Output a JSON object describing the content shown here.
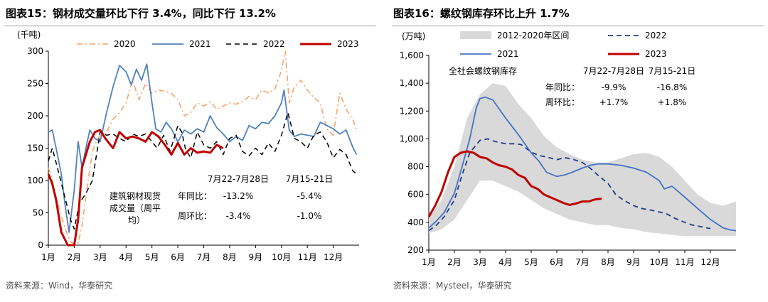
{
  "left": {
    "title": "图表15：钢材成交量环比下行 3.4%，同比下行 13.2%",
    "source": "资料来源：Wind，华泰研究",
    "chart_data": {
      "type": "line",
      "title": "钢材成交量环比下行 3.4%，同比下行 13.2%",
      "ylabel": "(千吨)",
      "ylim": [
        0,
        300
      ],
      "yticks": [
        "0",
        "50",
        "100",
        "150",
        "200",
        "250",
        "300"
      ],
      "xlim": [
        1,
        13
      ],
      "xticks": [
        "1月",
        "2月",
        "3月",
        "4月",
        "5月",
        "6月",
        "7月",
        "8月",
        "9月",
        "10月",
        "11月",
        "12月"
      ],
      "series": [
        {
          "name": "2020",
          "color": "#f4a46a",
          "dash": "dashdot",
          "width": 1.6,
          "x": [
            1.0,
            1.15,
            1.3,
            1.5,
            1.7,
            1.85,
            2.0,
            2.15,
            2.3,
            2.5,
            2.7,
            2.85,
            3.0,
            3.25,
            3.5,
            3.75,
            4.0,
            4.25,
            4.5,
            4.75,
            5.0,
            5.25,
            5.5,
            5.75,
            6.0,
            6.25,
            6.5,
            6.75,
            7.0,
            7.25,
            7.5,
            7.75,
            8.0,
            8.25,
            8.5,
            8.75,
            9.0,
            9.25,
            9.5,
            9.75,
            10.0,
            10.15,
            10.3,
            10.5,
            10.75,
            11.0,
            11.25,
            11.5,
            11.75,
            12.0,
            12.25,
            12.5,
            12.75,
            12.9
          ],
          "y": [
            120,
            100,
            75,
            45,
            20,
            5,
            2,
            3,
            30,
            90,
            145,
            160,
            170,
            175,
            195,
            205,
            220,
            255,
            225,
            250,
            235,
            240,
            238,
            235,
            225,
            200,
            205,
            220,
            215,
            222,
            210,
            215,
            220,
            218,
            222,
            230,
            225,
            240,
            235,
            242,
            270,
            300,
            220,
            245,
            255,
            240,
            228,
            220,
            180,
            170,
            235,
            210,
            195,
            178
          ]
        },
        {
          "name": "2021",
          "color": "#4f81bd",
          "dash": "solid",
          "width": 1.8,
          "x": [
            1.0,
            1.15,
            1.3,
            1.5,
            1.65,
            1.8,
            2.0,
            2.15,
            2.3,
            2.45,
            2.6,
            2.8,
            3.0,
            3.25,
            3.5,
            3.75,
            4.0,
            4.2,
            4.4,
            4.6,
            4.8,
            5.0,
            5.15,
            5.35,
            5.55,
            5.75,
            6.0,
            6.25,
            6.5,
            6.75,
            7.0,
            7.25,
            7.5,
            7.75,
            8.0,
            8.25,
            8.5,
            8.75,
            9.0,
            9.25,
            9.5,
            9.75,
            10.0,
            10.1,
            10.3,
            10.5,
            10.75,
            11.0,
            11.25,
            11.5,
            11.75,
            12.0,
            12.25,
            12.5,
            12.75,
            12.9
          ],
          "y": [
            175,
            178,
            150,
            110,
            60,
            20,
            85,
            160,
            120,
            150,
            178,
            165,
            160,
            205,
            245,
            278,
            268,
            248,
            272,
            255,
            280,
            220,
            180,
            175,
            190,
            180,
            160,
            178,
            172,
            180,
            175,
            200,
            182,
            172,
            160,
            168,
            162,
            185,
            180,
            190,
            188,
            200,
            220,
            240,
            178,
            168,
            172,
            170,
            168,
            190,
            185,
            180,
            172,
            178,
            152,
            140
          ]
        },
        {
          "name": "2022",
          "color": "#000000",
          "dash": "dashed",
          "width": 1.5,
          "x": [
            1.0,
            1.15,
            1.35,
            1.6,
            1.85,
            2.0,
            2.2,
            2.45,
            2.7,
            3.0,
            3.25,
            3.5,
            3.75,
            4.0,
            4.25,
            4.5,
            4.75,
            5.0,
            5.2,
            5.45,
            5.7,
            6.0,
            6.15,
            6.3,
            6.5,
            6.75,
            7.0,
            7.25,
            7.5,
            7.75,
            8.0,
            8.25,
            8.5,
            8.75,
            9.0,
            9.25,
            9.5,
            9.75,
            10.0,
            10.25,
            10.5,
            10.75,
            11.0,
            11.25,
            11.5,
            11.75,
            12.0,
            12.25,
            12.5,
            12.75,
            12.9
          ],
          "y": [
            130,
            150,
            120,
            80,
            40,
            25,
            65,
            80,
            100,
            175,
            170,
            172,
            165,
            160,
            172,
            168,
            172,
            160,
            150,
            170,
            145,
            185,
            175,
            148,
            135,
            175,
            155,
            150,
            160,
            140,
            165,
            170,
            145,
            138,
            150,
            140,
            158,
            145,
            170,
            205,
            165,
            160,
            150,
            170,
            175,
            160,
            135,
            148,
            140,
            115,
            110
          ]
        },
        {
          "name": "2023",
          "color": "#c00000",
          "dash": "solid",
          "width": 3,
          "x": [
            1.0,
            1.15,
            1.3,
            1.5,
            1.75,
            2.0,
            2.15,
            2.3,
            2.6,
            2.8,
            3.0,
            3.2,
            3.5,
            3.75,
            4.0,
            4.25,
            4.5,
            4.75,
            5.0,
            5.25,
            5.5,
            5.75,
            6.0,
            6.25,
            6.5,
            6.75,
            7.0,
            7.25,
            7.5,
            7.75
          ],
          "y": [
            110,
            95,
            70,
            20,
            0,
            0,
            40,
            120,
            160,
            175,
            178,
            165,
            150,
            175,
            165,
            168,
            165,
            160,
            175,
            168,
            155,
            140,
            158,
            140,
            150,
            143,
            145,
            143,
            155,
            150
          ]
        }
      ],
      "annotation": {
        "header_a": "7月22-7月28日",
        "header_b": "7月15-21日",
        "indicator_line1": "建筑钢材现货",
        "indicator_line2": "成交量（周平",
        "indicator_line3": "均）",
        "yoy_label": "年同比：",
        "yoy_a": "-13.2%",
        "yoy_b": "-5.4%",
        "wow_label": "周环比：",
        "wow_a": "-3.4%",
        "wow_b": "-1.0%"
      }
    }
  },
  "right": {
    "title": "图表16：螺纹钢库存环比上升 1.7%",
    "source": "资料来源：Mysteel，华泰研究",
    "chart_data": {
      "type": "line",
      "title": "螺纹钢库存环比上升 1.7%",
      "ylabel": "(万吨)",
      "ylim": [
        200,
        1600
      ],
      "yticks": [
        "200",
        "400",
        "600",
        "800",
        "1,000",
        "1,200",
        "1,400",
        "1,600"
      ],
      "xlim": [
        1,
        13
      ],
      "xticks": [
        "1月",
        "2月",
        "3月",
        "4月",
        "5月",
        "6月",
        "7月",
        "8月",
        "9月",
        "10月",
        "11月",
        "12月"
      ],
      "band": {
        "name": "2012-2020年区间",
        "color": "#d9d9d9",
        "x": [
          1.0,
          1.5,
          2.0,
          2.5,
          3.0,
          3.5,
          4.0,
          4.5,
          5.0,
          5.5,
          6.0,
          6.5,
          7.0,
          7.5,
          8.0,
          8.5,
          9.0,
          9.5,
          10.0,
          10.5,
          11.0,
          11.5,
          12.0,
          12.5,
          13.0
        ],
        "upper": [
          430,
          560,
          800,
          1150,
          1320,
          1400,
          1380,
          1250,
          1150,
          1020,
          940,
          890,
          850,
          830,
          830,
          860,
          890,
          900,
          870,
          800,
          700,
          600,
          540,
          520,
          550
        ],
        "lower": [
          320,
          350,
          420,
          560,
          700,
          700,
          660,
          620,
          560,
          500,
          460,
          420,
          400,
          380,
          380,
          360,
          350,
          330,
          320,
          310,
          300,
          300,
          300,
          300,
          300
        ]
      },
      "series": [
        {
          "name": "2022",
          "color": "#1f3c88",
          "dash": "dashed",
          "width": 1.8,
          "x": [
            1.0,
            1.3,
            1.6,
            2.0,
            2.3,
            2.6,
            3.0,
            3.3,
            3.6,
            4.0,
            4.3,
            4.6,
            5.0,
            5.3,
            5.6,
            6.0,
            6.3,
            6.6,
            7.0,
            7.3,
            7.6,
            8.0,
            8.3,
            8.6,
            9.0,
            9.3,
            9.6,
            10.0,
            10.3,
            10.6,
            11.0,
            11.3,
            11.6,
            12.0
          ],
          "y": [
            340,
            380,
            440,
            560,
            740,
            900,
            990,
            1000,
            980,
            965,
            965,
            960,
            905,
            880,
            870,
            850,
            865,
            855,
            830,
            790,
            740,
            680,
            600,
            560,
            520,
            500,
            490,
            475,
            460,
            430,
            400,
            380,
            370,
            355
          ]
        },
        {
          "name": "2021",
          "color": "#4472c4",
          "dash": "solid",
          "width": 1.8,
          "x": [
            1.0,
            1.3,
            1.6,
            2.0,
            2.3,
            2.6,
            2.85,
            3.0,
            3.2,
            3.5,
            4.0,
            4.5,
            5.0,
            5.3,
            5.6,
            6.0,
            6.3,
            6.6,
            7.0,
            7.3,
            7.6,
            8.0,
            8.5,
            9.0,
            9.5,
            10.0,
            10.2,
            10.5,
            11.0,
            11.5,
            12.0,
            12.5,
            12.8,
            13.0
          ],
          "y": [
            360,
            410,
            470,
            610,
            800,
            1000,
            1220,
            1290,
            1300,
            1280,
            1150,
            1030,
            900,
            840,
            760,
            730,
            740,
            760,
            790,
            810,
            820,
            820,
            810,
            790,
            760,
            700,
            640,
            660,
            580,
            500,
            420,
            360,
            345,
            340
          ]
        },
        {
          "name": "2023",
          "color": "#c00000",
          "dash": "solid",
          "width": 3,
          "x": [
            1.0,
            1.25,
            1.5,
            1.75,
            2.0,
            2.25,
            2.5,
            2.75,
            3.0,
            3.25,
            3.5,
            3.75,
            4.0,
            4.25,
            4.5,
            4.75,
            5.0,
            5.25,
            5.5,
            5.75,
            6.0,
            6.25,
            6.5,
            6.75,
            7.0,
            7.25,
            7.5,
            7.75
          ],
          "y": [
            440,
            520,
            620,
            760,
            870,
            900,
            910,
            900,
            870,
            860,
            830,
            810,
            800,
            780,
            740,
            720,
            660,
            640,
            600,
            580,
            560,
            540,
            525,
            535,
            550,
            550,
            565,
            570
          ]
        }
      ],
      "annotation": {
        "label": "全社会螺纹钢库存",
        "header_a": "7月22-7月28日",
        "header_b": "7月15-21日",
        "yoy_label": "年同比：",
        "yoy_a": "-9.9%",
        "yoy_b": "-16.8%",
        "wow_label": "周环比：",
        "wow_a": "+1.7%",
        "wow_b": "+1.8%"
      }
    }
  }
}
